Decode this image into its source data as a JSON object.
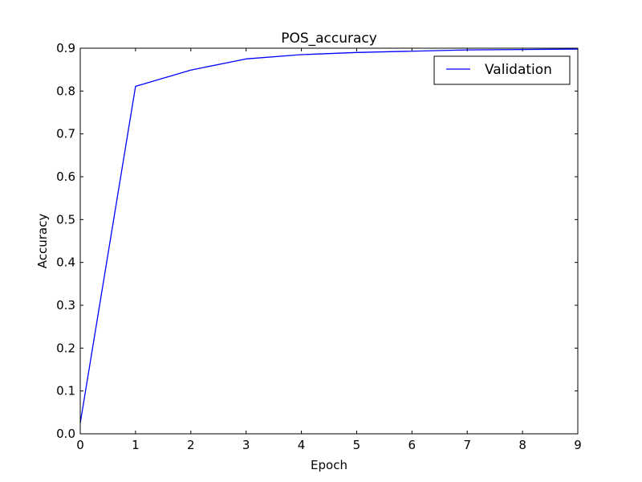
{
  "chart_data": {
    "type": "line",
    "title": "POS_accuracy",
    "xlabel": "Epoch",
    "ylabel": "Accuracy",
    "xlim": [
      0,
      9
    ],
    "ylim": [
      0.0,
      0.9
    ],
    "x_ticks": [
      "0",
      "1",
      "2",
      "3",
      "4",
      "5",
      "6",
      "7",
      "8",
      "9"
    ],
    "y_ticks": [
      "0.0",
      "0.1",
      "0.2",
      "0.3",
      "0.4",
      "0.5",
      "0.6",
      "0.7",
      "0.8",
      "0.9"
    ],
    "grid": false,
    "legend_position": "top-right",
    "series": [
      {
        "name": "Validation",
        "color": "#0000ff",
        "x": [
          0,
          1,
          2,
          3,
          4,
          5,
          6,
          7,
          8,
          9
        ],
        "y": [
          0.025,
          0.811,
          0.849,
          0.875,
          0.885,
          0.89,
          0.893,
          0.896,
          0.897,
          0.898
        ]
      }
    ]
  }
}
